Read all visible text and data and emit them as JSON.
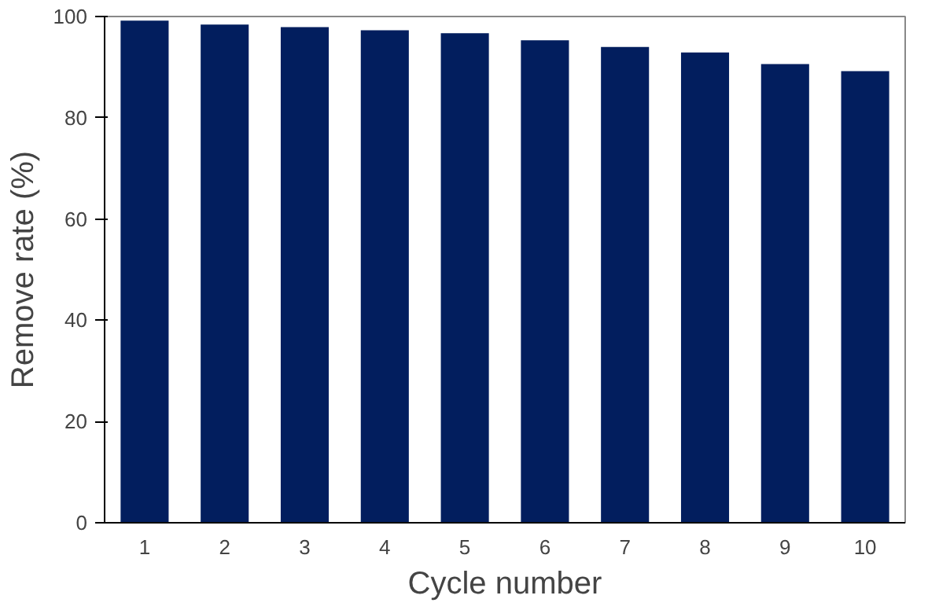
{
  "chart_data": {
    "type": "bar",
    "xlabel": "Cycle number",
    "ylabel": "Remove rate (%)",
    "categories": [
      "1",
      "2",
      "3",
      "4",
      "5",
      "6",
      "7",
      "8",
      "9",
      "10"
    ],
    "values": [
      99.2,
      98.4,
      97.9,
      97.3,
      96.7,
      95.3,
      94.0,
      92.9,
      90.6,
      89.2
    ],
    "color": "#021e5e",
    "ylim": [
      0,
      100
    ],
    "yticks": [
      0,
      20,
      40,
      60,
      80,
      100
    ],
    "grid": false
  }
}
